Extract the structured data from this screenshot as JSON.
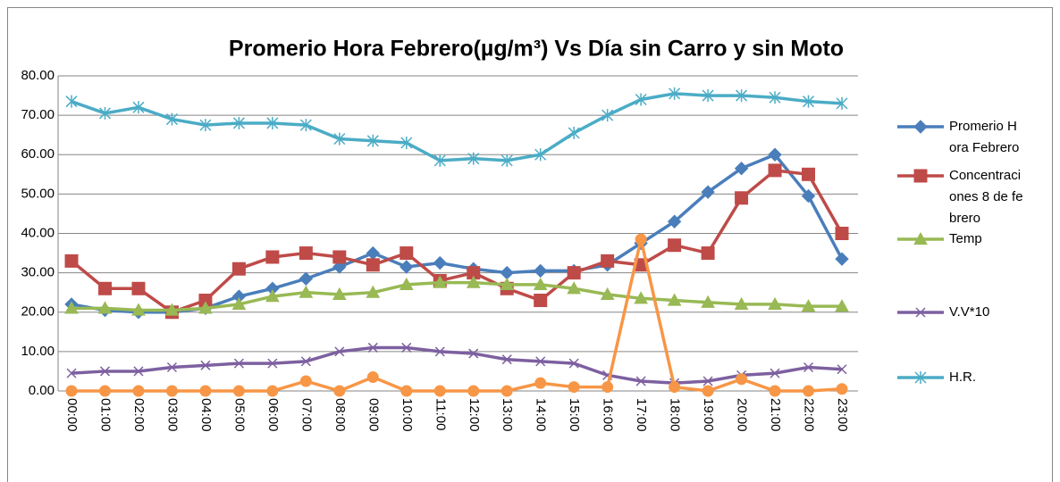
{
  "chart_data": {
    "type": "line",
    "title": "Promerio Hora Febrero(µg/m³) Vs Día sin Carro y sin Moto",
    "categories": [
      "00:00",
      "01:00",
      "02:00",
      "03:00",
      "04:00",
      "05:00",
      "06:00",
      "07:00",
      "08:00",
      "09:00",
      "10:00",
      "11:00",
      "12:00",
      "13:00",
      "14:00",
      "15:00",
      "16:00",
      "17:00",
      "18:00",
      "19:00",
      "20:00",
      "21:00",
      "22:00",
      "23:00"
    ],
    "ylim": [
      0,
      80
    ],
    "yticks": [
      {
        "value": 0,
        "label": "0.00"
      },
      {
        "value": 10,
        "label": "10.00"
      },
      {
        "value": 20,
        "label": "20.00"
      },
      {
        "value": 30,
        "label": "30.00"
      },
      {
        "value": 40,
        "label": "40.00"
      },
      {
        "value": 50,
        "label": "50.00"
      },
      {
        "value": 60,
        "label": "60.00"
      },
      {
        "value": 70,
        "label": "70.00"
      },
      {
        "value": 80,
        "label": "80.00"
      }
    ],
    "grid": true,
    "legend": "right",
    "series": [
      {
        "name": "Promerio Hora Febrero",
        "color": "#4a7ebb",
        "marker": "diamond",
        "values": [
          22,
          20.5,
          20,
          20,
          21,
          24,
          26,
          28.5,
          31.5,
          35,
          31.5,
          32.5,
          31,
          30,
          30.5,
          30.5,
          32,
          37.5,
          43,
          50.5,
          56.5,
          60,
          49.5,
          33.5
        ]
      },
      {
        "name": "Concentraciones 8 de febrero",
        "color": "#be4b48",
        "marker": "square",
        "values": [
          33,
          26,
          26,
          20,
          23,
          31,
          34,
          35,
          34,
          32,
          35,
          28,
          30,
          26,
          23,
          30,
          33,
          32,
          37,
          35,
          49,
          56,
          55,
          40
        ]
      },
      {
        "name": "Temp",
        "color": "#98b954",
        "marker": "triangle",
        "values": [
          21,
          21,
          20.5,
          20.5,
          21,
          22,
          24,
          25,
          24.5,
          25,
          27,
          27.5,
          27.5,
          27,
          27,
          26,
          24.5,
          23.5,
          23,
          22.5,
          22,
          22,
          21.5,
          21.5
        ]
      },
      {
        "name": "V.V*10",
        "color": "#7d60a0",
        "marker": "x",
        "values": [
          4.5,
          5,
          5,
          6,
          6.5,
          7,
          7,
          7.5,
          10,
          11,
          11,
          10,
          9.5,
          8,
          7.5,
          7,
          4,
          2.5,
          2,
          2.5,
          4,
          4.5,
          6,
          5.5
        ]
      },
      {
        "name": "H.R.",
        "color": "#4bacc6",
        "marker": "star",
        "values": [
          73.5,
          70.5,
          72,
          69,
          67.5,
          68,
          68,
          67.5,
          64,
          63.5,
          63,
          58.5,
          59,
          58.5,
          60,
          65.5,
          70,
          74,
          75.5,
          75,
          75,
          74.5,
          73.5,
          73
        ]
      },
      {
        "color": "#f79646",
        "marker": "circle",
        "values": [
          0,
          0,
          0,
          0,
          0,
          0,
          0,
          2.5,
          0,
          3.5,
          0,
          0,
          0,
          0,
          2,
          1,
          1,
          38.5,
          1,
          0,
          3,
          0,
          0,
          0.5
        ]
      }
    ]
  }
}
